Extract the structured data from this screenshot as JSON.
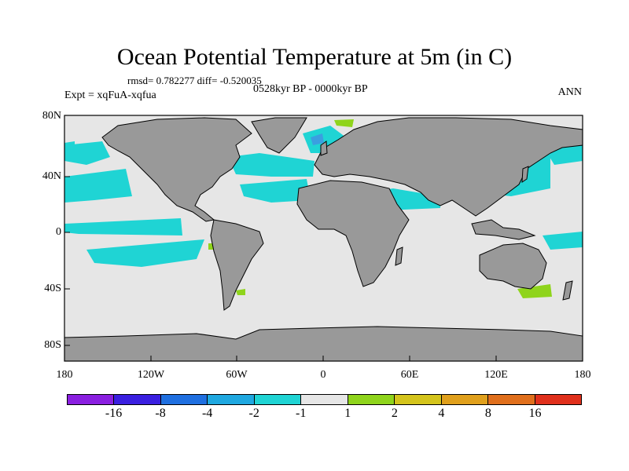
{
  "title": "Ocean Potential Temperature at 5m (in C)",
  "stats": "rmsd= 0.782277 diff= -0.520035",
  "period": "0528kyr BP - 0000kyr BP",
  "experiment": "Expt = xqFuA-xqfua",
  "season": "ANN",
  "colors": {
    "ocean_neutral": "#e6e6e6",
    "land": "#999999",
    "anomaly_cool": "#1fd4d4",
    "anomaly_blue": "#3a9fe0",
    "anomaly_warm": "#8fd41c"
  },
  "axes": {
    "y_ticks": [
      "80N",
      "40N",
      "0",
      "40S",
      "80S"
    ],
    "x_ticks": [
      "180",
      "120W",
      "60W",
      "0",
      "60E",
      "120E",
      "180"
    ]
  },
  "colorbar": {
    "colors": [
      "#8a1fe0",
      "#3a1fe0",
      "#1f6fe0",
      "#1fa8e0",
      "#1fd4d4",
      "#e6e6e6",
      "#8fd41c",
      "#d4c41c",
      "#e0a01c",
      "#e06f1c",
      "#e0301c"
    ],
    "labels": [
      "-16",
      "-8",
      "-4",
      "-2",
      "-1",
      "1",
      "2",
      "4",
      "8",
      "16"
    ]
  }
}
